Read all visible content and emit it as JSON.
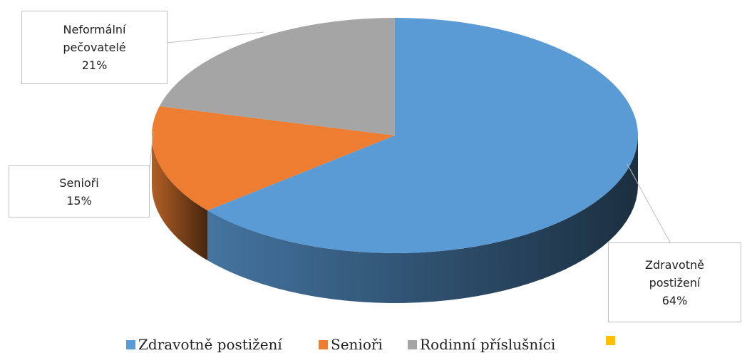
{
  "chart_data": {
    "type": "pie",
    "style": "3d",
    "categories": [
      "Zdravotně postižení",
      "Senioři",
      "Rodinní příslušníci",
      null
    ],
    "label_names": [
      "Zdravotně postižení",
      "Senioři",
      "Neformální pečovatelé",
      null
    ],
    "values": [
      64,
      15,
      21,
      null
    ],
    "value_labels": [
      "64%",
      "15%",
      "21%",
      null
    ],
    "colors": [
      "#5b9bd5",
      "#ed7d31",
      "#a5a5a5",
      "#ffc000"
    ],
    "legend": "bottom"
  }
}
